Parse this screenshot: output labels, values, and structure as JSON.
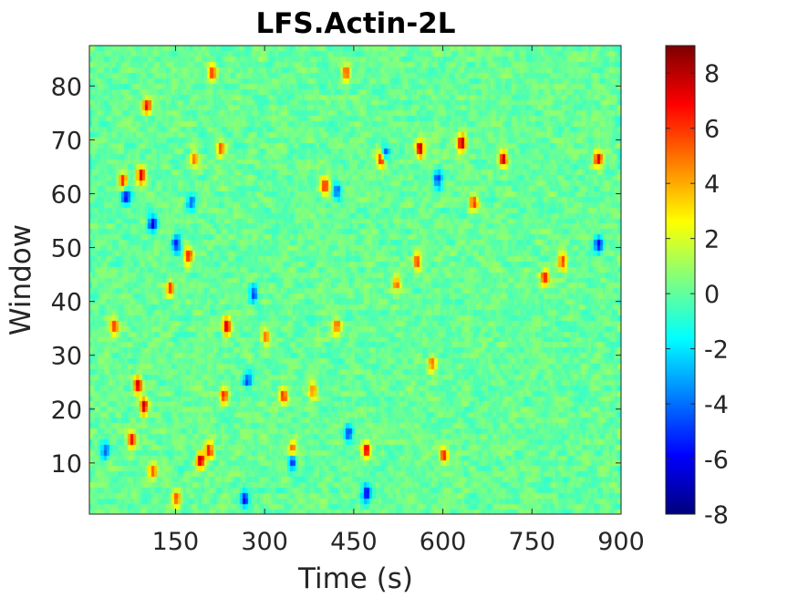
{
  "chart_data": {
    "type": "heatmap",
    "title": "LFS.Actin-2L",
    "xlabel": "Time (s)",
    "ylabel": "Window",
    "xlim": [
      5,
      900
    ],
    "ylim": [
      0.5,
      87.5
    ],
    "xticks": [
      150,
      300,
      450,
      600,
      750,
      900
    ],
    "xtick_labels": [
      "150",
      "300",
      "450",
      "600",
      "750",
      "900"
    ],
    "yticks": [
      10,
      20,
      30,
      40,
      50,
      60,
      70,
      80
    ],
    "ytick_labels": [
      "10",
      "20",
      "30",
      "40",
      "50",
      "60",
      "70",
      "80"
    ],
    "colormap": "jet",
    "clim": [
      -8,
      9
    ],
    "colorbar_ticks": [
      8,
      6,
      4,
      2,
      0,
      -2,
      -4,
      -6,
      -8
    ],
    "colorbar_tick_labels": [
      "8",
      "6",
      "4",
      "2",
      "0",
      "-2",
      "-4",
      "-6",
      "-8"
    ],
    "grid": false,
    "hotspots": [
      {
        "x": 60,
        "y": 62,
        "v": 7
      },
      {
        "x": 90,
        "y": 63,
        "v": 8
      },
      {
        "x": 100,
        "y": 76,
        "v": 7
      },
      {
        "x": 85,
        "y": 24,
        "v": 8
      },
      {
        "x": 95,
        "y": 20,
        "v": 9
      },
      {
        "x": 75,
        "y": 14,
        "v": 7
      },
      {
        "x": 45,
        "y": 35,
        "v": 6
      },
      {
        "x": 190,
        "y": 10,
        "v": 9
      },
      {
        "x": 205,
        "y": 12,
        "v": 7
      },
      {
        "x": 230,
        "y": 22,
        "v": 7
      },
      {
        "x": 235,
        "y": 35,
        "v": 8
      },
      {
        "x": 170,
        "y": 48,
        "v": 7
      },
      {
        "x": 225,
        "y": 68,
        "v": 6
      },
      {
        "x": 210,
        "y": 82,
        "v": 6
      },
      {
        "x": 180,
        "y": 66,
        "v": 5
      },
      {
        "x": 330,
        "y": 22,
        "v": 7
      },
      {
        "x": 345,
        "y": 12,
        "v": 6
      },
      {
        "x": 380,
        "y": 23,
        "v": 5
      },
      {
        "x": 400,
        "y": 61,
        "v": 7
      },
      {
        "x": 420,
        "y": 35,
        "v": 5
      },
      {
        "x": 435,
        "y": 82,
        "v": 6
      },
      {
        "x": 495,
        "y": 66,
        "v": 9
      },
      {
        "x": 560,
        "y": 68,
        "v": 9
      },
      {
        "x": 630,
        "y": 69,
        "v": 9
      },
      {
        "x": 700,
        "y": 66,
        "v": 8
      },
      {
        "x": 860,
        "y": 66,
        "v": 8
      },
      {
        "x": 555,
        "y": 47,
        "v": 7
      },
      {
        "x": 770,
        "y": 44,
        "v": 7
      },
      {
        "x": 800,
        "y": 47,
        "v": 6
      },
      {
        "x": 470,
        "y": 12,
        "v": 8
      },
      {
        "x": 600,
        "y": 11,
        "v": 7
      },
      {
        "x": 650,
        "y": 58,
        "v": 6
      },
      {
        "x": 520,
        "y": 43,
        "v": 5
      },
      {
        "x": 580,
        "y": 28,
        "v": 5
      },
      {
        "x": 140,
        "y": 42,
        "v": 6
      },
      {
        "x": 110,
        "y": 8,
        "v": 6
      },
      {
        "x": 300,
        "y": 33,
        "v": 5
      },
      {
        "x": 150,
        "y": 3,
        "v": 6
      }
    ],
    "coldspots": [
      {
        "x": 110,
        "y": 54,
        "v": -7
      },
      {
        "x": 150,
        "y": 50,
        "v": -6
      },
      {
        "x": 65,
        "y": 59,
        "v": -6
      },
      {
        "x": 280,
        "y": 41,
        "v": -6
      },
      {
        "x": 345,
        "y": 10,
        "v": -7
      },
      {
        "x": 265,
        "y": 3,
        "v": -7
      },
      {
        "x": 470,
        "y": 4,
        "v": -7
      },
      {
        "x": 500,
        "y": 67,
        "v": -6
      },
      {
        "x": 420,
        "y": 60,
        "v": -5
      },
      {
        "x": 590,
        "y": 62,
        "v": -5
      },
      {
        "x": 860,
        "y": 50,
        "v": -6
      },
      {
        "x": 175,
        "y": 58,
        "v": -5
      },
      {
        "x": 30,
        "y": 12,
        "v": -5
      },
      {
        "x": 440,
        "y": 15,
        "v": -5
      },
      {
        "x": 270,
        "y": 25,
        "v": -5
      }
    ]
  }
}
